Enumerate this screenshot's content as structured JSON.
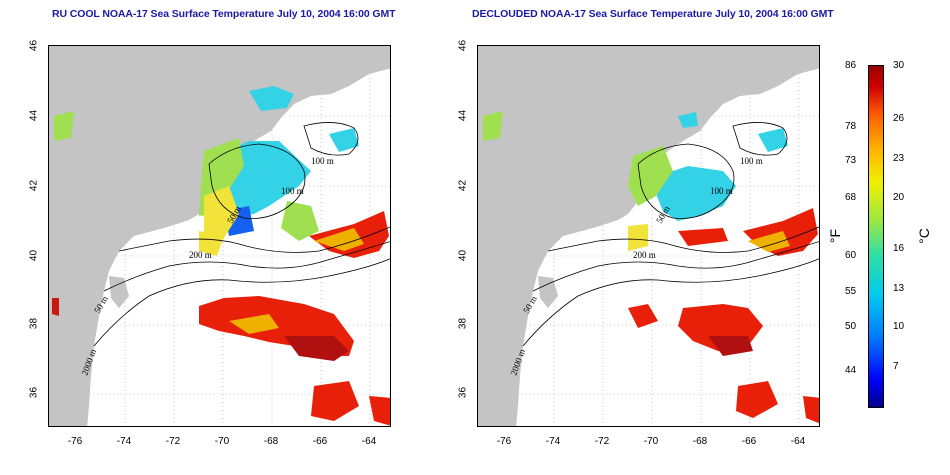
{
  "panels": [
    {
      "title": "RU COOL NOAA-17 Sea Surface Temperature July 10, 2004 16:00 GMT"
    },
    {
      "title": "DECLOUDED NOAA-17 Sea Surface Temperature July 10, 2004 16:00 GMT"
    }
  ],
  "map_axes": {
    "lon_ticks": [
      "-76",
      "-74",
      "-72",
      "-70",
      "-68",
      "-66",
      "-64"
    ],
    "lat_ticks": [
      "46",
      "44",
      "42",
      "40",
      "38",
      "36"
    ],
    "lon_range": [
      -77,
      -63
    ],
    "lat_range": [
      35,
      46
    ],
    "grid": "dotted"
  },
  "contour_labels": [
    "100 m",
    "100 m",
    "50 m",
    "200 m",
    "50 m",
    "2000 m"
  ],
  "colorbar": {
    "f_labels": [
      "86",
      "78",
      "73",
      "68",
      "60",
      "55",
      "50",
      "44"
    ],
    "c_labels": [
      "30",
      "26",
      "23",
      "20",
      "16",
      "13",
      "10",
      "7"
    ],
    "f_unit": "°F",
    "c_unit": "°C",
    "range_c": [
      4,
      30
    ]
  },
  "colors": {
    "land": "#c4c4c4",
    "ocean": "#ffffff",
    "title": "#1a1aa6",
    "warm": "#e8200a",
    "cool": "#33d2e6"
  }
}
